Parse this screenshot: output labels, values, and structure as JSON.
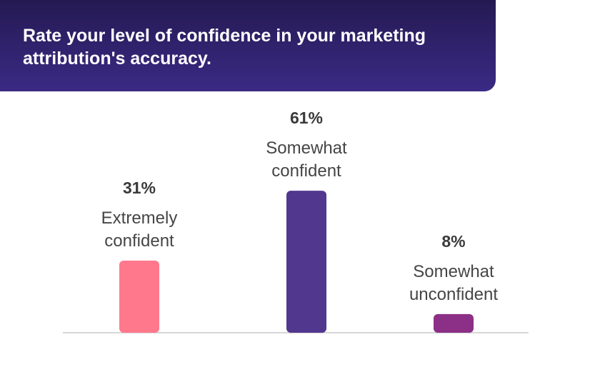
{
  "header": {
    "title": "Rate your level of confidence in your marketing attribution's accuracy."
  },
  "chart_data": {
    "type": "bar",
    "title": "Rate your level of confidence in your marketing attribution's accuracy.",
    "categories": [
      "Extremely confident",
      "Somewhat confident",
      "Somewhat unconfident"
    ],
    "category_lines": [
      [
        "Extremely",
        "confident"
      ],
      [
        "Somewhat",
        "confident"
      ],
      [
        "Somewhat",
        "unconfident"
      ]
    ],
    "values": [
      31,
      61,
      8
    ],
    "value_labels": [
      "31%",
      "61%",
      "8%"
    ],
    "colors": [
      "#ff788c",
      "#52378f",
      "#8c2f86"
    ],
    "ylim": [
      0,
      100
    ],
    "grid": false,
    "legend": "none",
    "xlabel": "",
    "ylabel": ""
  },
  "theme": {
    "banner_color": "#2e2169",
    "axis_color": "#d6d6d6"
  }
}
